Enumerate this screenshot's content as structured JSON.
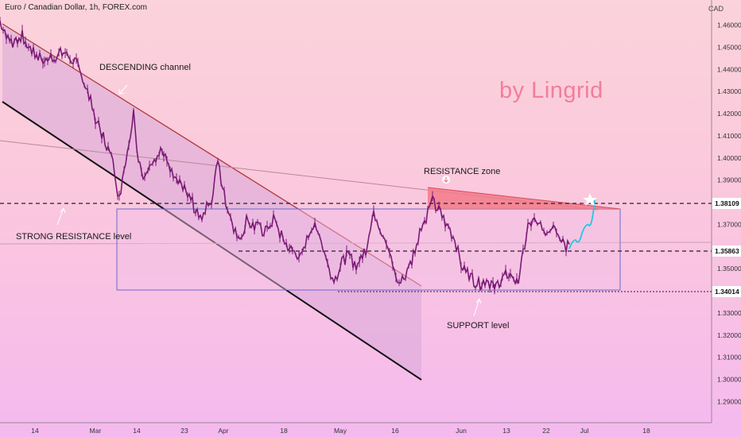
{
  "header": {
    "title": "Euro / Canadian Dollar, 1h, FOREX.com",
    "currency": "CAD"
  },
  "brand": "by Lingrid",
  "colors": {
    "candle": "#7a1a74",
    "channel": "#b33a3a",
    "support_line": "#111111",
    "box": "#6a6ad0",
    "forecast": "#20c8e0",
    "zone": "#f27a8a"
  },
  "chart_data": {
    "type": "candlestick",
    "y_ticks": [
      1.46,
      1.45,
      1.44,
      1.43,
      1.42,
      1.41,
      1.4,
      1.39,
      1.37,
      1.35,
      1.33,
      1.32,
      1.31,
      1.3,
      1.29
    ],
    "y_range": [
      1.2805,
      1.4713
    ],
    "x_ticks": [
      "14",
      "Mar",
      "14",
      "23",
      "Apr",
      "18",
      "May",
      "16",
      "Jun",
      "13",
      "22",
      "Jul",
      "18"
    ],
    "price_tags": [
      "1.38109",
      "1.35863",
      "1.34014"
    ],
    "levels": {
      "resistance": 1.38109,
      "mid": 1.35863,
      "support": 1.34014
    },
    "annotations": [
      "DESCENDING channel",
      "RESISTANCE zone",
      "STRONG RESISTANCE level",
      "SUPPORT level"
    ],
    "series_points": [
      [
        0,
        1.462
      ],
      [
        14,
        1.452
      ],
      [
        28,
        1.455
      ],
      [
        42,
        1.447
      ],
      [
        56,
        1.445
      ],
      [
        70,
        1.446
      ],
      [
        84,
        1.448
      ],
      [
        98,
        1.441
      ],
      [
        110,
        1.43
      ],
      [
        120,
        1.418
      ],
      [
        128,
        1.411
      ],
      [
        136,
        1.404
      ],
      [
        144,
        1.395
      ],
      [
        150,
        1.381
      ],
      [
        156,
        1.396
      ],
      [
        162,
        1.407
      ],
      [
        168,
        1.421
      ],
      [
        174,
        1.399
      ],
      [
        182,
        1.389
      ],
      [
        188,
        1.399
      ],
      [
        196,
        1.401
      ],
      [
        206,
        1.403
      ],
      [
        214,
        1.394
      ],
      [
        222,
        1.389
      ],
      [
        232,
        1.385
      ],
      [
        242,
        1.38
      ],
      [
        250,
        1.372
      ],
      [
        258,
        1.376
      ],
      [
        266,
        1.381
      ],
      [
        274,
        1.398
      ],
      [
        282,
        1.383
      ],
      [
        290,
        1.374
      ],
      [
        300,
        1.362
      ],
      [
        310,
        1.372
      ],
      [
        320,
        1.369
      ],
      [
        332,
        1.367
      ],
      [
        344,
        1.372
      ],
      [
        356,
        1.363
      ],
      [
        368,
        1.358
      ],
      [
        380,
        1.355
      ],
      [
        392,
        1.37
      ],
      [
        402,
        1.365
      ],
      [
        412,
        1.352
      ],
      [
        420,
        1.344
      ],
      [
        428,
        1.351
      ],
      [
        436,
        1.356
      ],
      [
        448,
        1.352
      ],
      [
        460,
        1.359
      ],
      [
        470,
        1.376
      ],
      [
        478,
        1.369
      ],
      [
        486,
        1.362
      ],
      [
        494,
        1.352
      ],
      [
        502,
        1.343
      ],
      [
        510,
        1.346
      ],
      [
        518,
        1.354
      ],
      [
        526,
        1.365
      ],
      [
        534,
        1.372
      ],
      [
        544,
        1.38
      ],
      [
        552,
        1.376
      ],
      [
        560,
        1.371
      ],
      [
        570,
        1.365
      ],
      [
        580,
        1.352
      ],
      [
        590,
        1.347
      ],
      [
        602,
        1.343
      ],
      [
        612,
        1.345
      ],
      [
        622,
        1.342
      ],
      [
        632,
        1.345
      ],
      [
        642,
        1.349
      ],
      [
        650,
        1.343
      ],
      [
        658,
        1.356
      ],
      [
        664,
        1.37
      ],
      [
        672,
        1.371
      ],
      [
        680,
        1.368
      ],
      [
        688,
        1.367
      ],
      [
        696,
        1.371
      ],
      [
        704,
        1.366
      ],
      [
        712,
        1.36
      ],
      [
        716,
        1.361
      ]
    ],
    "forecast_points": [
      [
        716,
        1.359
      ],
      [
        724,
        1.363
      ],
      [
        732,
        1.366
      ],
      [
        740,
        1.37
      ],
      [
        748,
        1.381
      ]
    ]
  }
}
